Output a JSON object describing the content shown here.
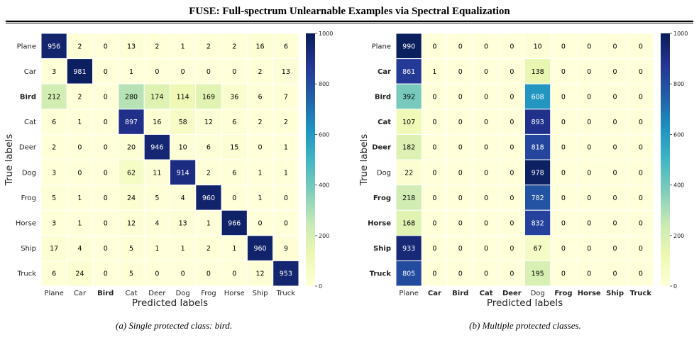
{
  "header": {
    "title": "FUSE: Full-spectrum Unlearnable Examples via Spectral Equalization"
  },
  "palette": [
    "#ffffd9",
    "#edf8b1",
    "#c7e9b4",
    "#7fcdbb",
    "#41b6c4",
    "#1d91c0",
    "#225ea8",
    "#253494",
    "#081d58"
  ],
  "chart_data": [
    {
      "type": "heatmap",
      "title": "",
      "xlabel": "Predicted labels",
      "ylabel": "True labels",
      "labels": [
        "Plane",
        "Car",
        "Bird",
        "Cat",
        "Deer",
        "Dog",
        "Frog",
        "Horse",
        "Ship",
        "Truck"
      ],
      "bold_labels": [
        "Bird"
      ],
      "range": [
        0,
        1000
      ],
      "colorbar_ticks": [
        0,
        200,
        400,
        600,
        800,
        1000
      ],
      "matrix": [
        [
          956,
          2,
          0,
          13,
          2,
          1,
          2,
          2,
          16,
          6
        ],
        [
          3,
          981,
          0,
          1,
          0,
          0,
          0,
          0,
          2,
          13
        ],
        [
          212,
          2,
          0,
          280,
          174,
          114,
          169,
          36,
          6,
          7
        ],
        [
          6,
          1,
          0,
          897,
          16,
          58,
          12,
          6,
          2,
          2
        ],
        [
          2,
          0,
          0,
          20,
          946,
          10,
          6,
          15,
          0,
          1
        ],
        [
          3,
          0,
          0,
          62,
          11,
          914,
          2,
          6,
          1,
          1
        ],
        [
          5,
          1,
          0,
          24,
          5,
          4,
          960,
          0,
          1,
          0
        ],
        [
          3,
          1,
          0,
          12,
          4,
          13,
          1,
          966,
          0,
          0
        ],
        [
          17,
          4,
          0,
          5,
          1,
          1,
          2,
          1,
          960,
          9
        ],
        [
          6,
          24,
          0,
          5,
          0,
          0,
          0,
          0,
          12,
          953
        ]
      ],
      "caption": "(a) Single protected class: bird."
    },
    {
      "type": "heatmap",
      "title": "",
      "xlabel": "Predicted labels",
      "ylabel": "True labels",
      "labels": [
        "Plane",
        "Car",
        "Bird",
        "Cat",
        "Deer",
        "Dog",
        "Frog",
        "Horse",
        "Ship",
        "Truck"
      ],
      "bold_labels": [
        "Car",
        "Bird",
        "Cat",
        "Deer",
        "Frog",
        "Horse",
        "Ship",
        "Truck"
      ],
      "range": [
        0,
        1000
      ],
      "colorbar_ticks": [
        0,
        200,
        400,
        600,
        800,
        1000
      ],
      "matrix": [
        [
          990,
          0,
          0,
          0,
          0,
          10,
          0,
          0,
          0,
          0
        ],
        [
          861,
          1,
          0,
          0,
          0,
          138,
          0,
          0,
          0,
          0
        ],
        [
          392,
          0,
          0,
          0,
          0,
          608,
          0,
          0,
          0,
          0
        ],
        [
          107,
          0,
          0,
          0,
          0,
          893,
          0,
          0,
          0,
          0
        ],
        [
          182,
          0,
          0,
          0,
          0,
          818,
          0,
          0,
          0,
          0
        ],
        [
          22,
          0,
          0,
          0,
          0,
          978,
          0,
          0,
          0,
          0
        ],
        [
          218,
          0,
          0,
          0,
          0,
          782,
          0,
          0,
          0,
          0
        ],
        [
          168,
          0,
          0,
          0,
          0,
          832,
          0,
          0,
          0,
          0
        ],
        [
          933,
          0,
          0,
          0,
          0,
          67,
          0,
          0,
          0,
          0
        ],
        [
          805,
          0,
          0,
          0,
          0,
          195,
          0,
          0,
          0,
          0
        ]
      ],
      "caption": "(b) Multiple protected classes."
    }
  ]
}
